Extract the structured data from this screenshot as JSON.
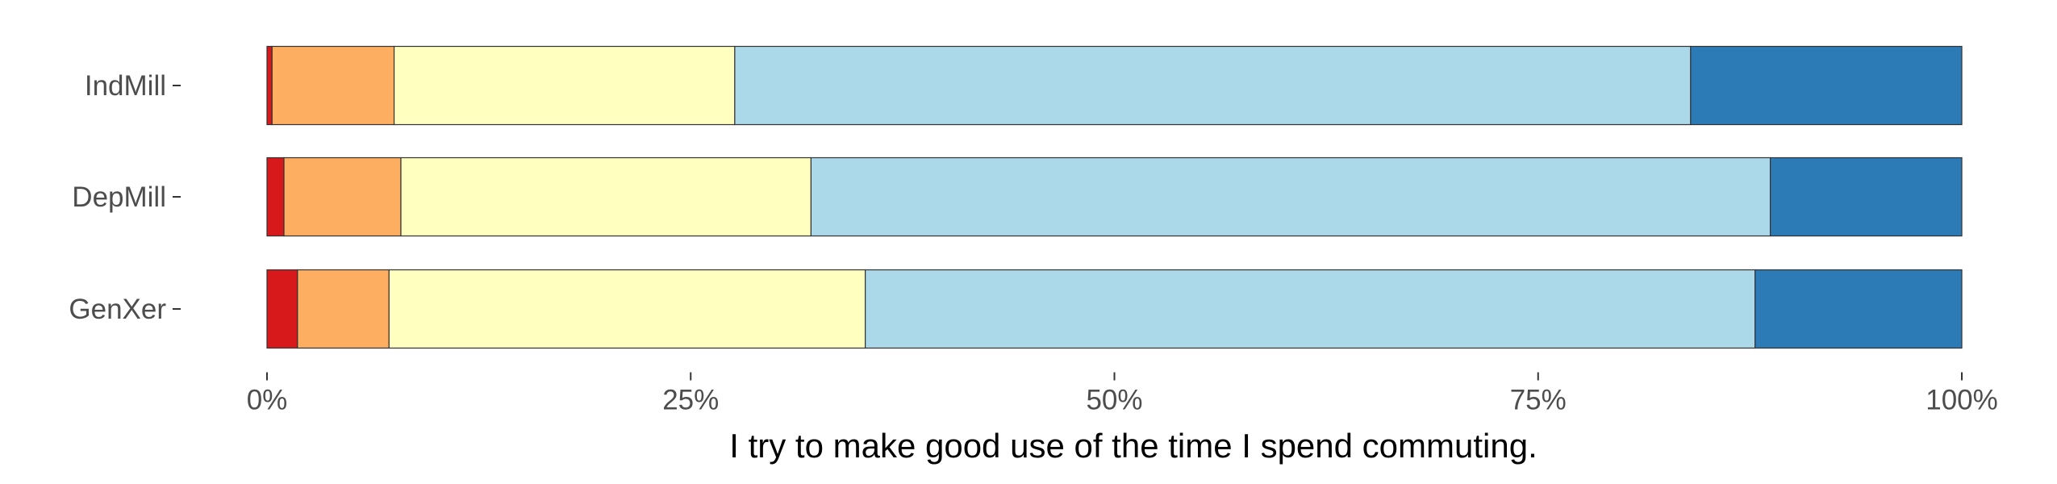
{
  "chart_data": {
    "type": "bar",
    "orientation": "horizontal",
    "stacked": true,
    "normalized": true,
    "title": "",
    "xlabel": "I try to make good use of the time I spend commuting.",
    "ylabel": "",
    "xlim": [
      0,
      1
    ],
    "x_ticks": [
      0,
      0.25,
      0.5,
      0.75,
      1.0
    ],
    "x_tick_labels": [
      "0%",
      "25%",
      "50%",
      "75%",
      "100%"
    ],
    "categories": [
      "IndMill",
      "DepMill",
      "GenXer"
    ],
    "grid": false,
    "legend": "none",
    "series": [
      {
        "color": "#d7191c",
        "values": [
          0.003,
          0.01,
          0.018
        ]
      },
      {
        "color": "#fdae61",
        "values": [
          0.072,
          0.069,
          0.054
        ]
      },
      {
        "color": "#ffffbf",
        "values": [
          0.201,
          0.242,
          0.281
        ]
      },
      {
        "color": "#abd9e9",
        "values": [
          0.564,
          0.566,
          0.525
        ]
      },
      {
        "color": "#2c7bb6",
        "values": [
          0.16,
          0.113,
          0.122
        ]
      }
    ]
  }
}
